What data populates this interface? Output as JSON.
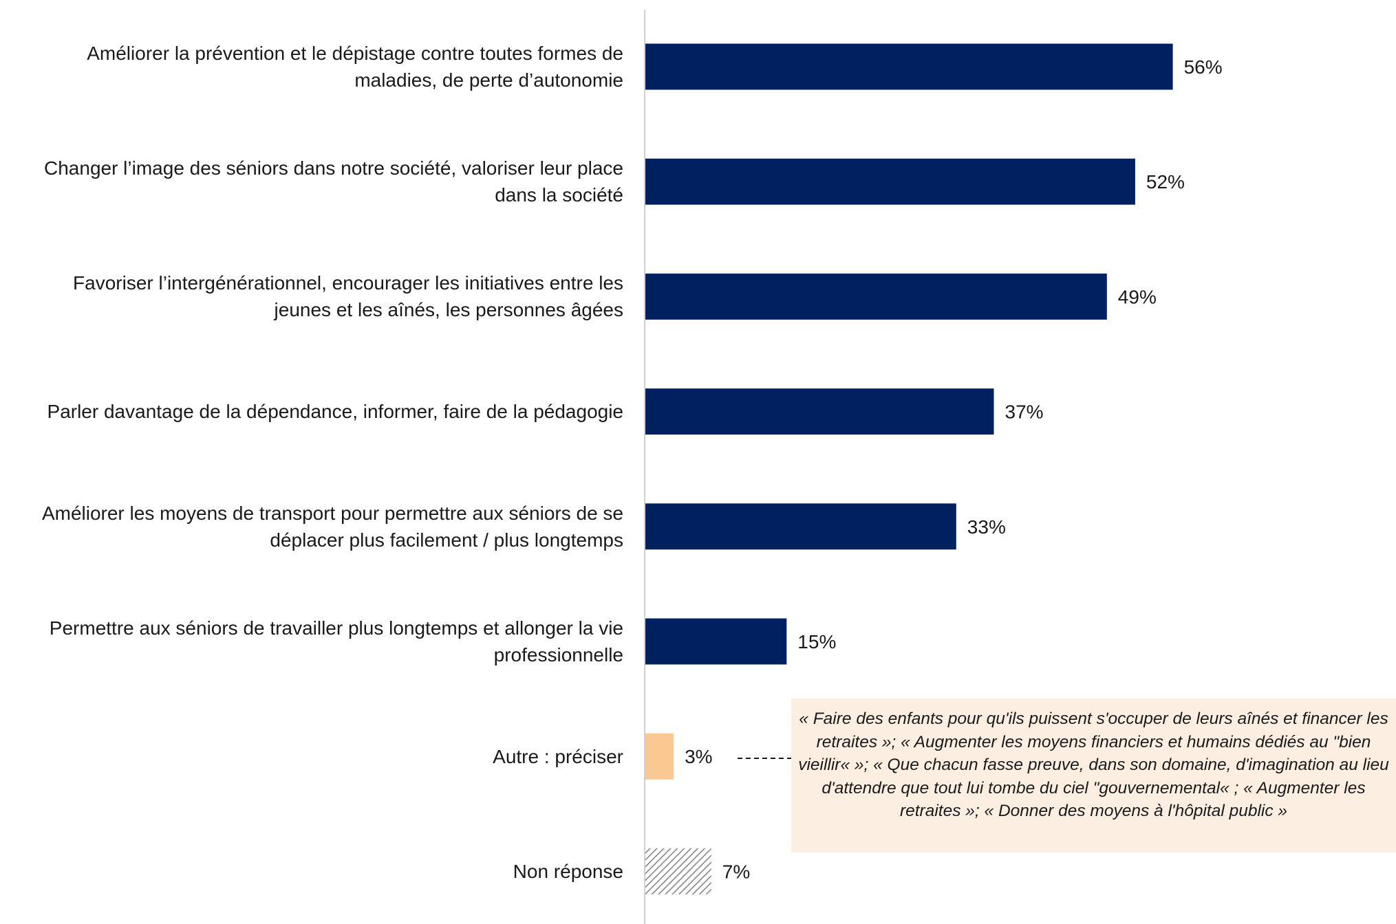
{
  "chart_data": {
    "type": "bar",
    "orientation": "horizontal",
    "categories": [
      "Améliorer la prévention et le dépistage contre toutes formes de\nmaladies, de perte d’autonomie",
      "Changer l’image des séniors dans notre société, valoriser leur place\ndans la société",
      "Favoriser l’intergénérationnel, encourager les initiatives entre les\njeunes et les aînés, les personnes âgées",
      "Parler davantage de la dépendance, informer, faire de la pédagogie",
      "Améliorer les moyens de transport pour permettre aux séniors de se\ndéplacer plus facilement / plus longtemps",
      "Permettre aux séniors de travailler plus longtemps et allonger la vie\nprofessionnelle",
      "Autre : préciser",
      "Non réponse"
    ],
    "values": [
      56,
      52,
      49,
      37,
      33,
      15,
      3,
      7
    ],
    "value_labels": [
      "56%",
      "52%",
      "49%",
      "37%",
      "33%",
      "15%",
      "3%",
      "7%"
    ],
    "bar_styles": [
      "solid",
      "solid",
      "solid",
      "solid",
      "solid",
      "solid",
      "solid",
      "hatched"
    ],
    "bar_colors": [
      "#002060",
      "#002060",
      "#002060",
      "#002060",
      "#002060",
      "#002060",
      "#fac890",
      "#7f7f7f"
    ],
    "axis_line_color": "#d0d0d0",
    "grid": false,
    "legend": "none",
    "xlim": [
      0,
      60
    ],
    "annotation": {
      "category": "Autre : préciser",
      "connector": "dashed",
      "text": "« Faire des enfants pour qu'ils puissent s'occuper de leurs aînés et financer les retraites »; « Augmenter les moyens financiers et humains dédiés au \"bien vieillir«  »; « Que chacun fasse preuve, dans son domaine, d'imagination au lieu d'attendre que tout lui tombe du ciel \"gouvernemental« ; « Augmenter les retraites »; « Donner des moyens à l'hôpital public »",
      "background": "#fdeee2"
    }
  }
}
